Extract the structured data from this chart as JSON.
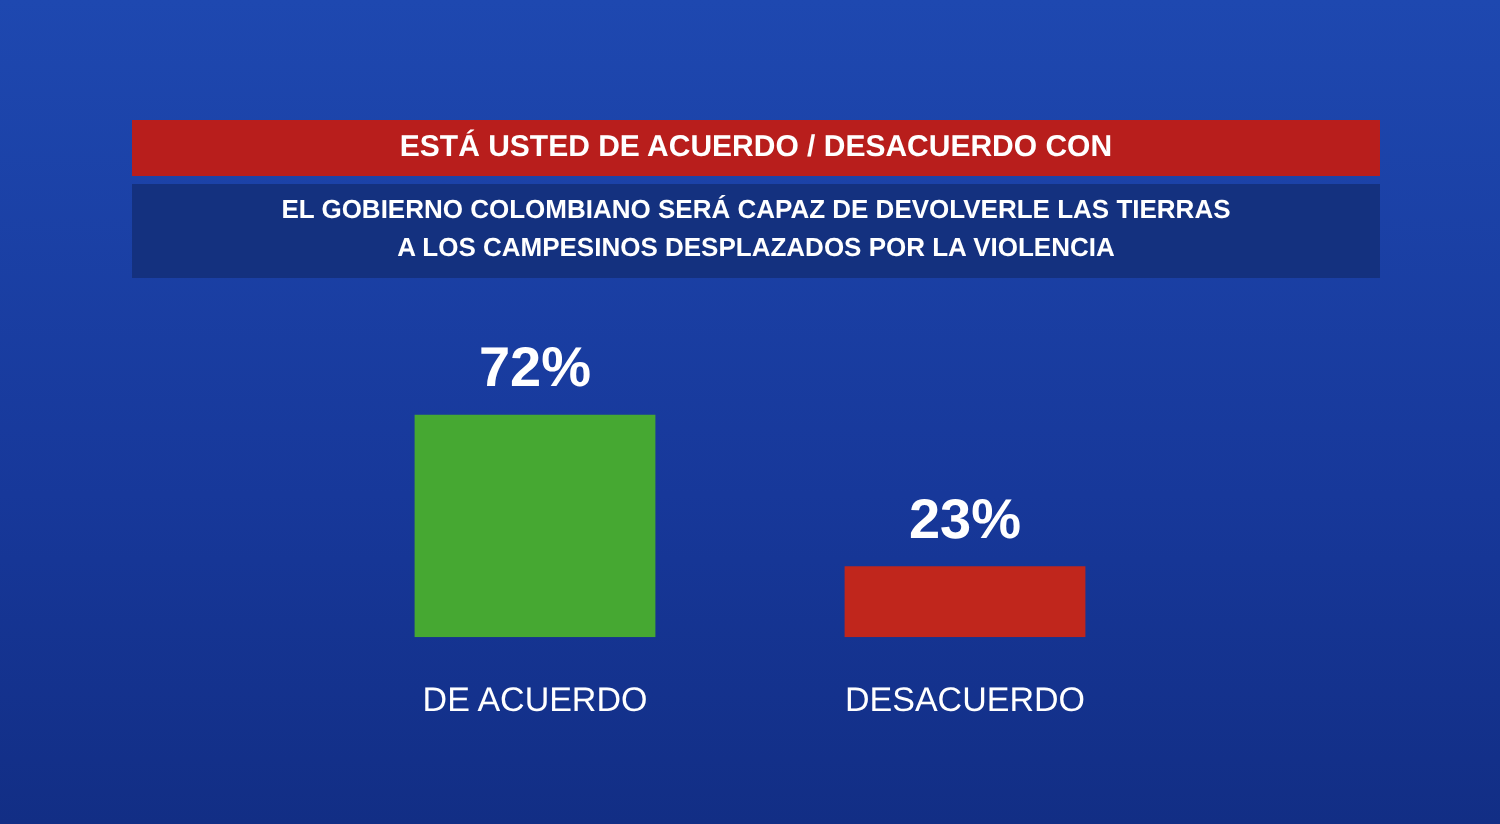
{
  "chart_data": {
    "type": "bar",
    "title": "ESTÁ USTED DE ACUERDO / DESACUERDO CON",
    "subtitle": "EL GOBIERNO COLOMBIANO SERÁ CAPAZ DE DEVOLVERLE LAS TIERRAS\nA LOS CAMPESINOS DESPLAZADOS POR LA VIOLENCIA",
    "categories": [
      "DE ACUERDO",
      "DESACUERDO"
    ],
    "values": [
      72,
      23
    ],
    "value_labels": [
      "72%",
      "23%"
    ],
    "colors": [
      "#46a832",
      "#c0261c"
    ],
    "grid": false,
    "legend": false
  }
}
